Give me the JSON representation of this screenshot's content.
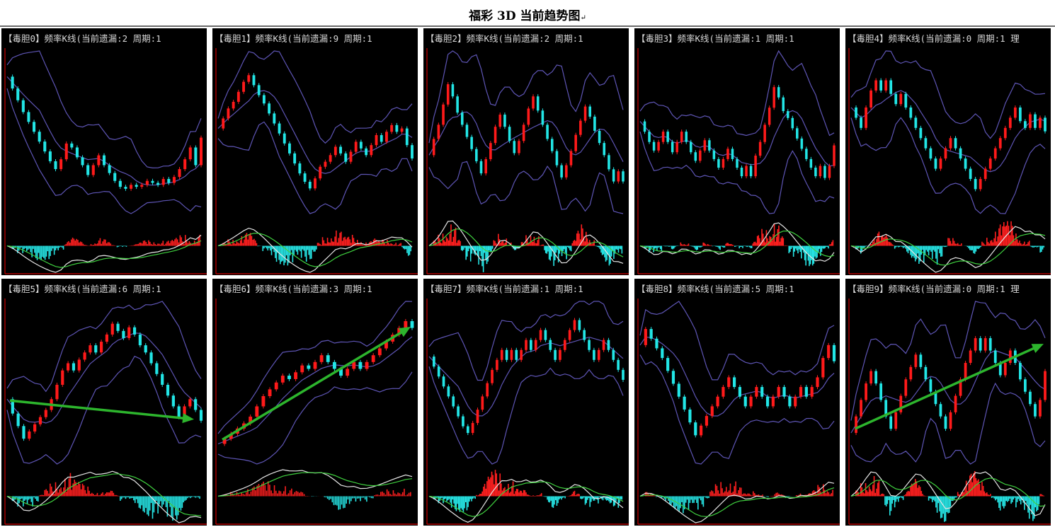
{
  "page": {
    "title": "福彩 3D 当前趋势图",
    "return_mark": "↵"
  },
  "panels": [
    {
      "title": "【毒胆0】频率K线(当前遗漏:2 周期:1"
    },
    {
      "title": "【毒胆1】频率K线(当前遗漏:9 周期:1"
    },
    {
      "title": "【毒胆2】频率K线(当前遗漏:2 周期:1"
    },
    {
      "title": "【毒胆3】频率K线(当前遗漏:1 周期:1"
    },
    {
      "title": "【毒胆4】频率K线(当前遗漏:0 周期:1 理"
    },
    {
      "title": "【毒胆5】频率K线(当前遗漏:6 周期:1"
    },
    {
      "title": "【毒胆6】频率K线(当前遗漏:3 周期:1"
    },
    {
      "title": "【毒胆7】频率K线(当前遗漏:1 周期:1"
    },
    {
      "title": "【毒胆8】频率K线(当前遗漏:5 周期:1"
    },
    {
      "title": "【毒胆9】频率K线(当前遗漏:0 周期:1 理"
    }
  ],
  "chart_data": [
    {
      "type": "line",
      "digit": 0,
      "missing": 2,
      "period": 1,
      "trend_arrow": null,
      "series": [
        {
          "values": [
            78,
            72,
            66,
            60,
            55,
            50,
            45,
            40,
            35,
            31,
            36,
            44,
            42,
            37,
            33,
            28,
            33,
            38,
            33,
            29,
            25,
            22,
            21,
            23,
            22,
            23,
            25,
            24,
            23,
            26,
            24,
            27,
            31,
            36,
            42,
            33,
            47
          ]
        }
      ]
    },
    {
      "type": "line",
      "digit": 1,
      "missing": 9,
      "period": 1,
      "trend_arrow": null,
      "series": [
        {
          "values": [
            58,
            64,
            70,
            74,
            80,
            86,
            90,
            84,
            78,
            73,
            67,
            61,
            55,
            49,
            43,
            37,
            31,
            26,
            22,
            28,
            35,
            38,
            42,
            47,
            43,
            38,
            44,
            50,
            46,
            42,
            48,
            54,
            50,
            56,
            60,
            56,
            58,
            48,
            40
          ]
        }
      ]
    },
    {
      "type": "line",
      "digit": 2,
      "missing": 2,
      "period": 1,
      "trend_arrow": null,
      "series": [
        {
          "values": [
            55,
            63,
            70,
            80,
            90,
            84,
            76,
            70,
            64,
            58,
            52,
            46,
            53,
            61,
            69,
            75,
            69,
            62,
            56,
            62,
            70,
            78,
            84,
            77,
            70,
            63,
            57,
            50,
            44,
            50,
            57,
            65,
            72,
            79,
            74,
            67,
            61,
            55,
            48,
            42,
            47,
            42
          ]
        }
      ]
    },
    {
      "type": "line",
      "digit": 3,
      "missing": 1,
      "period": 1,
      "trend_arrow": null,
      "series": [
        {
          "values": [
            70,
            64,
            58,
            53,
            58,
            64,
            58,
            52,
            58,
            64,
            58,
            52,
            47,
            53,
            59,
            53,
            48,
            43,
            48,
            54,
            48,
            43,
            38,
            44,
            38,
            50,
            58,
            68,
            78,
            90,
            84,
            76,
            72,
            66,
            60,
            54,
            48,
            43,
            38,
            44,
            37,
            44,
            56
          ]
        }
      ]
    },
    {
      "type": "line",
      "digit": 4,
      "missing": 0,
      "period": 1,
      "trend_arrow": null,
      "series": [
        {
          "values": [
            70,
            64,
            58,
            70,
            80,
            86,
            80,
            86,
            78,
            72,
            78,
            70,
            64,
            58,
            52,
            46,
            40,
            34,
            40,
            46,
            52,
            46,
            40,
            34,
            28,
            22,
            28,
            34,
            40,
            46,
            52,
            58,
            64,
            70,
            62,
            58,
            66,
            58,
            64,
            56
          ]
        }
      ]
    },
    {
      "type": "line",
      "digit": 5,
      "missing": 6,
      "period": 1,
      "trend_arrow": "flat",
      "series": [
        {
          "values": [
            50,
            42,
            35,
            28,
            32,
            36,
            40,
            44,
            50,
            58,
            66,
            70,
            66,
            72,
            76,
            80,
            76,
            82,
            86,
            92,
            88,
            84,
            90,
            86,
            80,
            76,
            70,
            64,
            58,
            52,
            46,
            40,
            46,
            50,
            44,
            38
          ]
        }
      ]
    },
    {
      "type": "line",
      "digit": 6,
      "missing": 3,
      "period": 1,
      "trend_arrow": "up",
      "series": [
        {
          "values": [
            22,
            25,
            28,
            31,
            34,
            38,
            44,
            50,
            54,
            58,
            62,
            60,
            64,
            68,
            66,
            70,
            74,
            70,
            66,
            62,
            66,
            70,
            66,
            70,
            74,
            78,
            82,
            86,
            90,
            94,
            90
          ]
        }
      ]
    },
    {
      "type": "line",
      "digit": 7,
      "missing": 1,
      "period": 1,
      "trend_arrow": null,
      "series": [
        {
          "values": [
            70,
            64,
            58,
            52,
            46,
            40,
            34,
            28,
            24,
            30,
            38,
            46,
            54,
            62,
            68,
            74,
            68,
            74,
            68,
            74,
            80,
            74,
            80,
            86,
            80,
            74,
            68,
            74,
            80,
            86,
            92,
            86,
            80,
            74,
            68,
            74,
            80,
            74,
            68,
            62,
            56
          ]
        }
      ]
    },
    {
      "type": "line",
      "digit": 8,
      "missing": 5,
      "period": 1,
      "trend_arrow": null,
      "series": [
        {
          "values": [
            80,
            90,
            84,
            78,
            72,
            64,
            56,
            48,
            40,
            32,
            24,
            30,
            36,
            42,
            48,
            54,
            60,
            54,
            48,
            42,
            48,
            54,
            48,
            42,
            48,
            54,
            48,
            42,
            48,
            54,
            48,
            54,
            60,
            72,
            80,
            70
          ]
        }
      ]
    },
    {
      "type": "line",
      "digit": 9,
      "missing": 0,
      "period": 1,
      "trend_arrow": "up",
      "series": [
        {
          "values": [
            40,
            48,
            56,
            64,
            70,
            64,
            56,
            48,
            42,
            50,
            58,
            66,
            72,
            78,
            72,
            66,
            60,
            54,
            48,
            42,
            50,
            58,
            66,
            74,
            80,
            86,
            80,
            86,
            80,
            74,
            68,
            74,
            80,
            74,
            66,
            60,
            54,
            48,
            56,
            70
          ]
        }
      ]
    }
  ]
}
